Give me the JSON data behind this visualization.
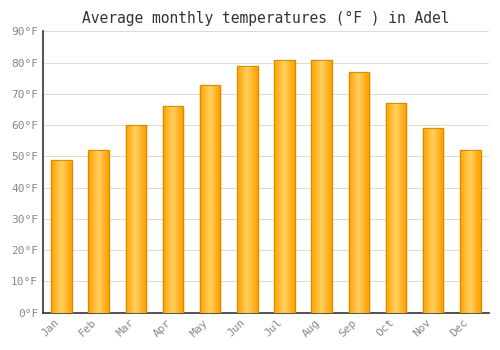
{
  "title": "Average monthly temperatures (°F ) in Adel",
  "months": [
    "Jan",
    "Feb",
    "Mar",
    "Apr",
    "May",
    "Jun",
    "Jul",
    "Aug",
    "Sep",
    "Oct",
    "Nov",
    "Dec"
  ],
  "values": [
    49,
    52,
    60,
    66,
    73,
    79,
    81,
    81,
    77,
    67,
    59,
    52
  ],
  "bar_color_center": "#FFD060",
  "bar_color_edge": "#FFA000",
  "bar_outline_color": "#CC8800",
  "ylim": [
    0,
    90
  ],
  "yticks": [
    0,
    10,
    20,
    30,
    40,
    50,
    60,
    70,
    80,
    90
  ],
  "ytick_labels": [
    "0°F",
    "10°F",
    "20°F",
    "30°F",
    "40°F",
    "50°F",
    "60°F",
    "70°F",
    "80°F",
    "90°F"
  ],
  "background_color": "#ffffff",
  "grid_color": "#ddddcc",
  "title_fontsize": 10.5,
  "tick_fontsize": 8,
  "bar_width": 0.55
}
